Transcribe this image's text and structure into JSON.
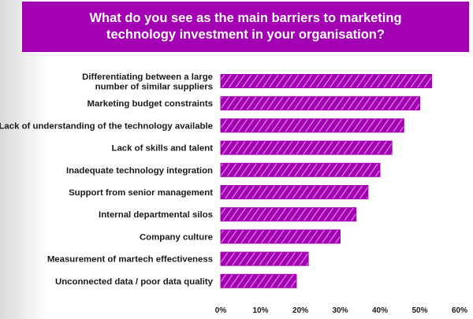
{
  "chart_data": {
    "type": "bar",
    "orientation": "horizontal",
    "title": "What do you see as the main barriers to marketing technology investment in your organisation?",
    "categories": [
      [
        "Differentiating between a large",
        "number of similar suppliers"
      ],
      [
        "Marketing budget constraints"
      ],
      [
        "Lack of understanding of the technology available"
      ],
      [
        "Lack of skills and talent"
      ],
      [
        "Inadequate technology integration"
      ],
      [
        "Support from senior management"
      ],
      [
        "Internal departmental silos"
      ],
      [
        "Company culture"
      ],
      [
        "Measurement of martech effectiveness"
      ],
      [
        "Unconnected data / poor data quality"
      ]
    ],
    "values": [
      53,
      50,
      46,
      43,
      40,
      37,
      34,
      30,
      22,
      19
    ],
    "xlim": [
      0,
      60
    ],
    "ticks": [
      0,
      10,
      20,
      30,
      40,
      50,
      60
    ],
    "tick_labels": [
      "0%",
      "10%",
      "20%",
      "30%",
      "40%",
      "50%",
      "60%"
    ],
    "bar_color": "#a400b3",
    "bar_stripe_color": "#d98ae3",
    "banner_color": "#a400b3",
    "grid": false,
    "legend": "none"
  }
}
